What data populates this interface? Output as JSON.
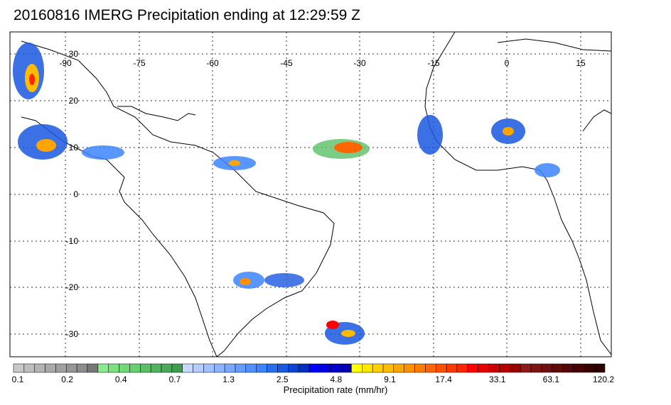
{
  "title": "20160816 IMERG Precipitation ending at 12:29:59 Z",
  "map": {
    "longitude_labels": [
      "-90",
      "-75",
      "-60",
      "-45",
      "-30",
      "-15",
      "0",
      "15"
    ],
    "latitude_labels": [
      "30",
      "20",
      "10",
      "0",
      "-10",
      "-20",
      "-30"
    ],
    "gridline_style": "dotted"
  },
  "colorbar": {
    "title": "Precipitation rate (mm/hr)",
    "tick_labels": [
      "0.1",
      "0.2",
      "0.4",
      "0.7",
      "1.3",
      "2.5",
      "4.8",
      "9.1",
      "17.4",
      "33.1",
      "63.1",
      "120.2"
    ],
    "colors": [
      "#c8c8c8",
      "#bebebe",
      "#b4b4b4",
      "#aaaaaa",
      "#a0a0a0",
      "#969696",
      "#8c8c8c",
      "#787878",
      "#8ee88e",
      "#7ee07e",
      "#72d87a",
      "#66d070",
      "#5ac068",
      "#52b461",
      "#4aa85a",
      "#3f9c52",
      "#c8d8ff",
      "#b4ccff",
      "#a0c0ff",
      "#8cb4ff",
      "#78a8ff",
      "#649cff",
      "#5090ff",
      "#3c84ff",
      "#2a6cf0",
      "#1a58e0",
      "#0a44d0",
      "#0030c0",
      "#0000ff",
      "#0000e0",
      "#0000c8",
      "#0000b0",
      "#ffff00",
      "#ffe600",
      "#ffd000",
      "#ffbb00",
      "#ffa500",
      "#ff9000",
      "#ff7a00",
      "#ff6500",
      "#ff5000",
      "#ff3a00",
      "#ff2500",
      "#ff0000",
      "#e60000",
      "#cc0000",
      "#b30000",
      "#990000",
      "#8b1a1a",
      "#7d1515",
      "#701010",
      "#620b0b",
      "#550606",
      "#480303",
      "#3a0000",
      "#2d0000"
    ]
  }
}
